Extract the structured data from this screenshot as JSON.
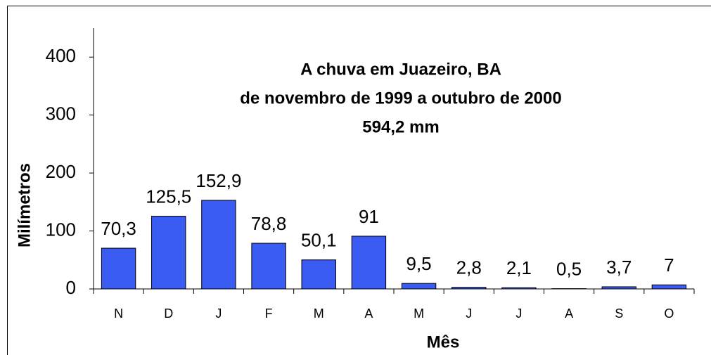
{
  "chart_data": {
    "type": "bar",
    "title": "A chuva em Juazeiro, BA",
    "subtitle": "de novembro de 1999 a outubro de 2000",
    "annotations": [
      "594,2 mm"
    ],
    "x_label": "Mês",
    "y_label": "Milímetros",
    "categories": [
      "N",
      "D",
      "J",
      "F",
      "M",
      "A",
      "M",
      "J",
      "J",
      "A",
      "S",
      "O"
    ],
    "values": [
      70.3,
      125.5,
      152.9,
      78.8,
      50.1,
      91,
      9.5,
      2.8,
      2.1,
      0.5,
      3.7,
      7
    ],
    "value_labels": [
      "70,3",
      "125,5",
      "152,9",
      "78,8",
      "50,1",
      "91",
      "9,5",
      "2,8",
      "2,1",
      "0,5",
      "3,7",
      "7"
    ],
    "color": "#3a5cf2",
    "ylim": [
      0,
      450
    ],
    "yticks": [
      0,
      100,
      200,
      300,
      400
    ],
    "grid": false
  }
}
